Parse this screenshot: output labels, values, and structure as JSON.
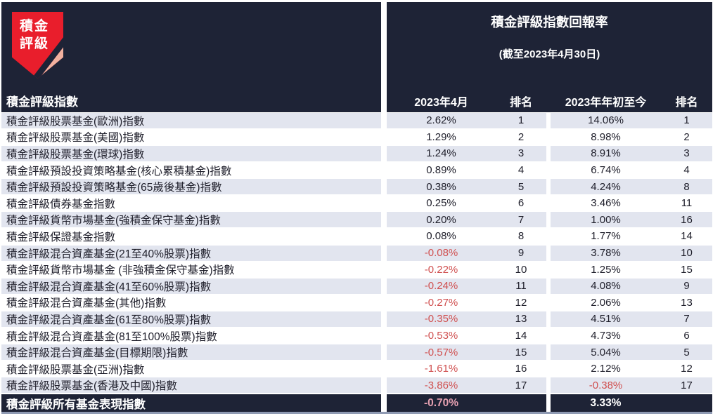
{
  "logo": {
    "line1": "積金",
    "line2": "評級"
  },
  "header": {
    "title": "積金評級指數回報率",
    "subtitle": "(截至2023年4月30日)",
    "index_col_label": "積金評級指數",
    "col_month": "2023年4月",
    "col_rank1": "排名",
    "col_ytd": "2023年年初至今",
    "col_rank2": "排名"
  },
  "rows": [
    {
      "name": "積金評級股票基金(歐洲)指數",
      "month": "2.62%",
      "rank_month": "1",
      "ytd": "14.06%",
      "rank_ytd": "1"
    },
    {
      "name": "積金評級股票基金(美國)指數",
      "month": "1.29%",
      "rank_month": "2",
      "ytd": "8.98%",
      "rank_ytd": "2"
    },
    {
      "name": "積金評級股票基金(環球)指數",
      "month": "1.24%",
      "rank_month": "3",
      "ytd": "8.91%",
      "rank_ytd": "3"
    },
    {
      "name": "積金評級預設投資策略基金(核心累積基金)指數",
      "month": "0.89%",
      "rank_month": "4",
      "ytd": "6.74%",
      "rank_ytd": "4"
    },
    {
      "name": "積金評級預設投資策略基金(65歲後基金)指數",
      "month": "0.38%",
      "rank_month": "5",
      "ytd": "4.24%",
      "rank_ytd": "8"
    },
    {
      "name": "積金評級債券基金指數",
      "month": "0.25%",
      "rank_month": "6",
      "ytd": "3.46%",
      "rank_ytd": "11"
    },
    {
      "name": "積金評級貨幣市場基金(強積金保守基金)指數",
      "month": "0.20%",
      "rank_month": "7",
      "ytd": "1.00%",
      "rank_ytd": "16"
    },
    {
      "name": "積金評級保證基金指數",
      "month": "0.08%",
      "rank_month": "8",
      "ytd": "1.77%",
      "rank_ytd": "14"
    },
    {
      "name": "積金評級混合資產基金(21至40%股票)指數",
      "month": "-0.08%",
      "rank_month": "9",
      "ytd": "3.78%",
      "rank_ytd": "10"
    },
    {
      "name": "積金評級貨幣市場基金 (非強積金保守基金)指數",
      "month": "-0.22%",
      "rank_month": "10",
      "ytd": "1.25%",
      "rank_ytd": "15"
    },
    {
      "name": "積金評級混合資產基金(41至60%股票)指數",
      "month": "-0.24%",
      "rank_month": "11",
      "ytd": "4.08%",
      "rank_ytd": "9"
    },
    {
      "name": "積金評級混合資產基金(其他)指數",
      "month": "-0.27%",
      "rank_month": "12",
      "ytd": "2.06%",
      "rank_ytd": "13"
    },
    {
      "name": "積金評級混合資產基金(61至80%股票)指數",
      "month": "-0.35%",
      "rank_month": "13",
      "ytd": "4.51%",
      "rank_ytd": "7"
    },
    {
      "name": "積金評級混合資產基金(81至100%股票)指數",
      "month": "-0.53%",
      "rank_month": "14",
      "ytd": "4.73%",
      "rank_ytd": "6"
    },
    {
      "name": "積金評級混合資產基金(目標期限)指數",
      "month": "-0.57%",
      "rank_month": "15",
      "ytd": "5.04%",
      "rank_ytd": "5"
    },
    {
      "name": "積金評級股票基金(亞洲)指數",
      "month": "-1.61%",
      "rank_month": "16",
      "ytd": "2.12%",
      "rank_ytd": "12"
    },
    {
      "name": "積金評級股票基金(香港及中國)指數",
      "month": "-3.86%",
      "rank_month": "17",
      "ytd": "-0.38%",
      "rank_ytd": "17"
    }
  ],
  "footer": {
    "name": "積金評級所有基金表現指數",
    "month": "-0.70%",
    "ytd": "3.33%"
  },
  "colors": {
    "navy": "#1e2336",
    "stripe": "#e2e5ef",
    "ink": "#20202c",
    "negative": "#d05050",
    "footer_pink": "#e6a1b2",
    "logo_red": "#e91e2c",
    "logo_peach": "#f2b19f",
    "bottom_line": "#8f9ab3"
  },
  "chart_data": {
    "type": "table",
    "title": "積金評級指數回報率",
    "subtitle": "(截至2023年4月30日)",
    "columns": [
      "積金評級指數",
      "2023年4月",
      "排名",
      "2023年年初至今",
      "排名"
    ],
    "summary_row": [
      "積金評級所有基金表現指數",
      "-0.70%",
      "",
      "3.33%",
      ""
    ]
  }
}
